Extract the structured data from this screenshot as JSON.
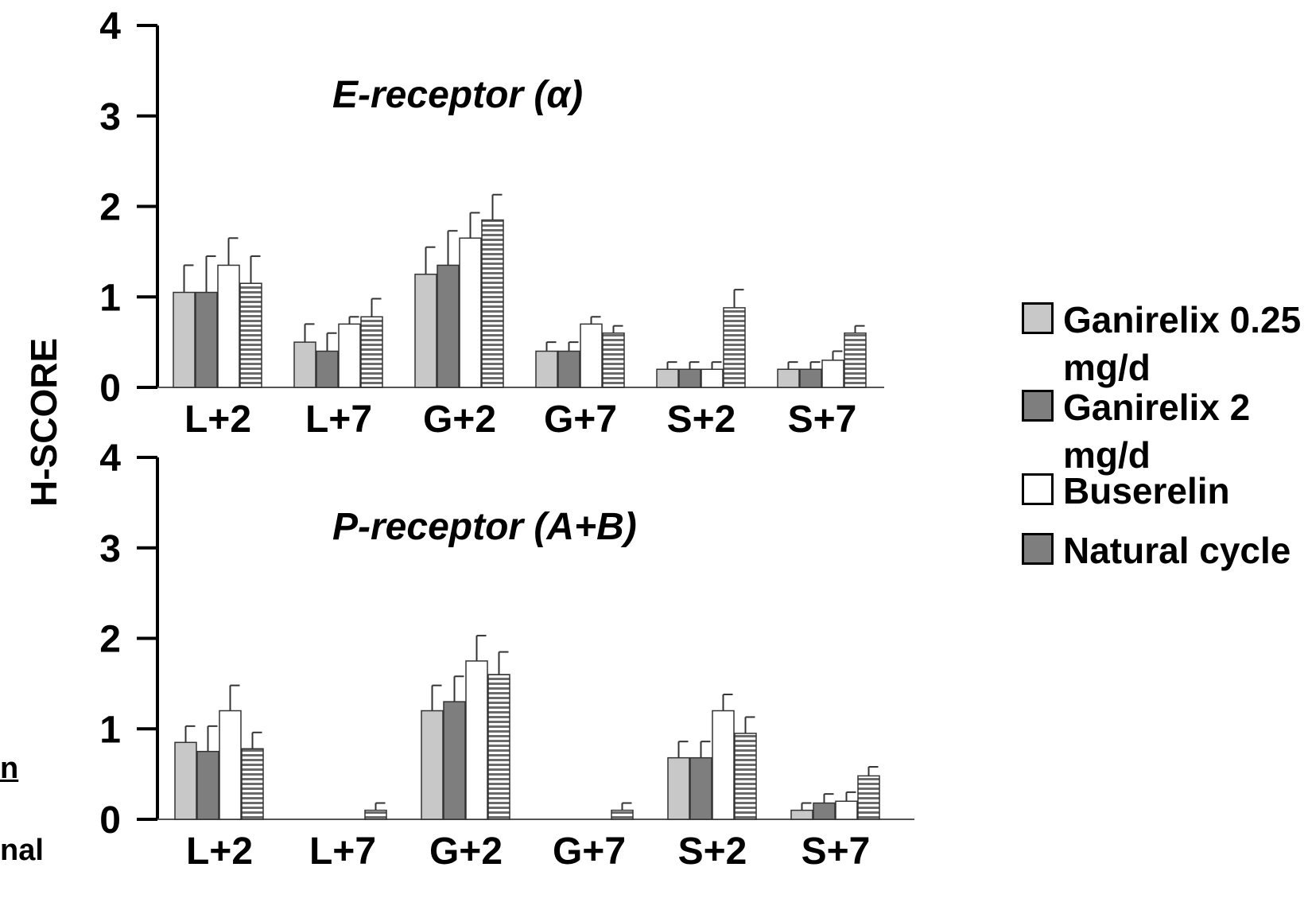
{
  "ylabel": "H-SCORE",
  "legend": [
    {
      "label": "Ganirelix 0.25 mg/d",
      "color": "#c8c8c8",
      "pattern": "solid"
    },
    {
      "label": "Ganirelix 2 mg/d",
      "color": "#7e7e7e",
      "pattern": "solid"
    },
    {
      "label": "Buserelin",
      "color": "#ffffff",
      "pattern": "solid"
    },
    {
      "label": "Natural cycle",
      "color": "#7e7e7e",
      "pattern": "hstripe"
    }
  ],
  "fragments": [
    "n",
    "nal"
  ],
  "chart_data": [
    {
      "type": "bar",
      "title": "E-receptor (α)",
      "categories": [
        "L+2",
        "L+7",
        "G+2",
        "G+7",
        "S+2",
        "S+7"
      ],
      "ylim": [
        0,
        4
      ],
      "yticks": [
        "0",
        "1",
        "2",
        "3",
        "4"
      ],
      "series": [
        {
          "name": "Ganirelix 0.25 mg/d",
          "values": [
            1.05,
            0.5,
            1.25,
            0.4,
            0.2,
            0.2
          ],
          "errors": [
            0.3,
            0.2,
            0.3,
            0.1,
            0.08,
            0.08
          ]
        },
        {
          "name": "Ganirelix 2 mg/d",
          "values": [
            1.05,
            0.4,
            1.35,
            0.4,
            0.2,
            0.2
          ],
          "errors": [
            0.4,
            0.2,
            0.38,
            0.1,
            0.08,
            0.08
          ]
        },
        {
          "name": "Buserelin",
          "values": [
            1.35,
            0.7,
            1.65,
            0.7,
            0.2,
            0.3
          ],
          "errors": [
            0.3,
            0.08,
            0.28,
            0.08,
            0.08,
            0.1
          ]
        },
        {
          "name": "Natural cycle",
          "values": [
            1.15,
            0.78,
            1.85,
            0.6,
            0.88,
            0.6
          ],
          "errors": [
            0.3,
            0.2,
            0.28,
            0.08,
            0.2,
            0.08
          ]
        }
      ]
    },
    {
      "type": "bar",
      "title": "P-receptor (A+B)",
      "categories": [
        "L+2",
        "L+7",
        "G+2",
        "G+7",
        "S+2",
        "S+7"
      ],
      "ylim": [
        0,
        4
      ],
      "yticks": [
        "0",
        "1",
        "2",
        "3",
        "4"
      ],
      "series": [
        {
          "name": "Ganirelix 0.25 mg/d",
          "values": [
            0.85,
            0,
            1.2,
            0,
            0.68,
            0.1
          ],
          "errors": [
            0.18,
            0,
            0.28,
            0,
            0.18,
            0.08
          ]
        },
        {
          "name": "Ganirelix 2 mg/d",
          "values": [
            0.75,
            0,
            1.3,
            0,
            0.68,
            0.18
          ],
          "errors": [
            0.28,
            0,
            0.28,
            0,
            0.18,
            0.1
          ]
        },
        {
          "name": "Buserelin",
          "values": [
            1.2,
            0,
            1.75,
            0,
            1.2,
            0.2
          ],
          "errors": [
            0.28,
            0,
            0.28,
            0,
            0.18,
            0.1
          ]
        },
        {
          "name": "Natural cycle",
          "values": [
            0.78,
            0.1,
            1.6,
            0.1,
            0.95,
            0.48
          ],
          "errors": [
            0.18,
            0.08,
            0.25,
            0.08,
            0.18,
            0.1
          ]
        }
      ]
    }
  ]
}
